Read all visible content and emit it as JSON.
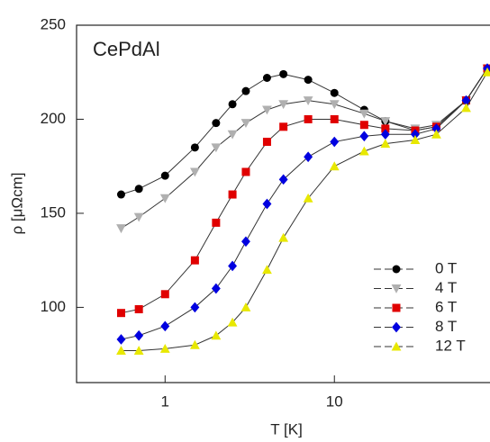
{
  "chart_data": {
    "type": "line",
    "annotation": "CePdAl",
    "x_label": "T [K]",
    "y_label": "ρ [μΩcm]",
    "xscale": "log",
    "xlim": [
      0.3,
      83
    ],
    "ylim": [
      60,
      250
    ],
    "xticks": [
      1,
      10
    ],
    "yticks": [
      100,
      150,
      200,
      250
    ],
    "legend": "lower right",
    "x": [
      0.55,
      0.7,
      1,
      1.5,
      2,
      2.5,
      3,
      4,
      5,
      7,
      10,
      15,
      20,
      30,
      40,
      60,
      80
    ],
    "series": [
      {
        "name": "0 T",
        "color": "#000000",
        "marker": "circle",
        "values": [
          160,
          163,
          170,
          185,
          198,
          208,
          215,
          222,
          224,
          221,
          214,
          205,
          199,
          194,
          196,
          210,
          227
        ]
      },
      {
        "name": "4 T",
        "color": "#b0b0b0",
        "marker": "triangle-down",
        "values": [
          142,
          148,
          158,
          172,
          185,
          192,
          198,
          205,
          208,
          210,
          208,
          203,
          199,
          195,
          197,
          210,
          227
        ]
      },
      {
        "name": "6 T",
        "color": "#e00000",
        "marker": "square",
        "values": [
          97,
          99,
          107,
          125,
          145,
          160,
          172,
          188,
          196,
          200,
          200,
          197,
          195,
          194,
          196,
          210,
          227
        ]
      },
      {
        "name": "8 T",
        "color": "#0000e0",
        "marker": "diamond",
        "values": [
          83,
          85,
          90,
          100,
          110,
          122,
          135,
          155,
          168,
          180,
          188,
          191,
          192,
          192,
          195,
          210,
          227
        ]
      },
      {
        "name": "12 T",
        "color": "#e8e800",
        "marker": "triangle-up",
        "values": [
          77,
          77,
          78,
          80,
          85,
          92,
          100,
          120,
          137,
          158,
          175,
          183,
          187,
          189,
          192,
          206,
          225
        ]
      }
    ]
  }
}
